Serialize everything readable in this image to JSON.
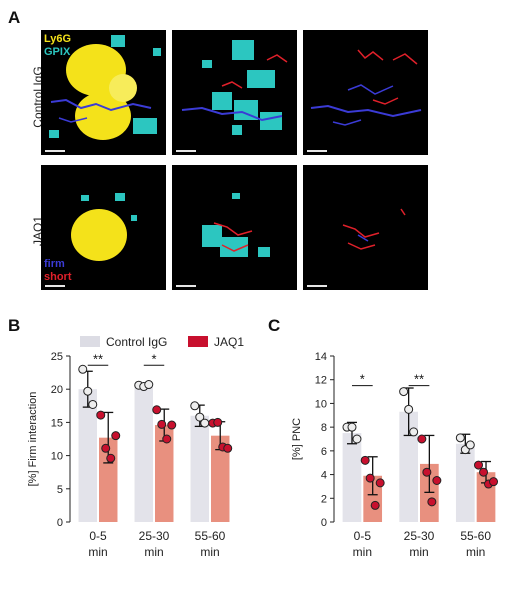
{
  "panels": {
    "a": "A",
    "b": "B",
    "c": "C"
  },
  "microscopy": {
    "row_labels": [
      "Control IgG",
      "JAQ1"
    ],
    "top_legend": {
      "ly6g": "Ly6G",
      "gpix": "GPIX"
    },
    "bottom_legend": {
      "firm": "firm",
      "short": "short"
    },
    "colors": {
      "ly6g": "#f4e21a",
      "gpix": "#2cc6c0",
      "firm": "#3b3bd6",
      "short": "#e0202a"
    }
  },
  "legend": [
    {
      "label": "Control IgG",
      "color": "#dcdce4"
    },
    {
      "label": "JAQ1",
      "color": "#c8102e"
    }
  ],
  "chart_data": [
    {
      "type": "bar",
      "panel": "B",
      "ylabel": "[%] Firm interaction",
      "categories": [
        "0-5\nmin",
        "25-30\nmin",
        "55-60\nmin"
      ],
      "ylim": [
        0,
        25
      ],
      "yticks": [
        0,
        5,
        10,
        15,
        20,
        25
      ],
      "series": [
        {
          "name": "Control IgG",
          "values": [
            20.0,
            20.5,
            16.0
          ],
          "errors": [
            2.7,
            0.2,
            1.6
          ],
          "points": [
            [
              23.0,
              19.7,
              17.7
            ],
            [
              20.6,
              20.4,
              20.7
            ],
            [
              17.5,
              15.8,
              14.9
            ]
          ]
        },
        {
          "name": "JAQ1",
          "values": [
            12.7,
            14.6,
            13.0
          ],
          "errors": [
            3.8,
            2.4,
            2.1
          ],
          "points": [
            [
              16.1,
              11.1,
              9.6,
              13.0
            ],
            [
              16.9,
              14.7,
              12.5,
              14.6
            ],
            [
              14.9,
              15.0,
              11.3,
              11.1
            ]
          ]
        }
      ],
      "significance": [
        {
          "category": 0,
          "label": "**",
          "y": 23.6
        },
        {
          "category": 1,
          "label": "*",
          "y": 23.6
        }
      ]
    },
    {
      "type": "bar",
      "panel": "C",
      "ylabel": "[%] PNC",
      "categories": [
        "0-5\nmin",
        "25-30\nmin",
        "55-60\nmin"
      ],
      "ylim": [
        0,
        14
      ],
      "yticks": [
        0,
        2,
        4,
        6,
        8,
        10,
        12,
        14
      ],
      "series": [
        {
          "name": "Control IgG",
          "values": [
            7.5,
            9.3,
            6.6
          ],
          "errors": [
            0.9,
            2.0,
            0.8
          ],
          "points": [
            [
              8.0,
              8.0,
              7.0
            ],
            [
              11.0,
              9.5,
              7.6
            ],
            [
              7.1,
              6.1,
              6.5
            ]
          ]
        },
        {
          "name": "JAQ1",
          "values": [
            3.9,
            4.9,
            4.2
          ],
          "errors": [
            1.6,
            2.4,
            0.9
          ],
          "points": [
            [
              5.2,
              3.7,
              1.4,
              3.3
            ],
            [
              7.0,
              4.2,
              1.7,
              3.5
            ],
            [
              4.8,
              4.2,
              3.2,
              3.4
            ]
          ]
        }
      ],
      "significance": [
        {
          "category": 0,
          "label": "*",
          "y": 11.5
        },
        {
          "category": 1,
          "label": "**",
          "y": 11.5
        }
      ]
    }
  ]
}
